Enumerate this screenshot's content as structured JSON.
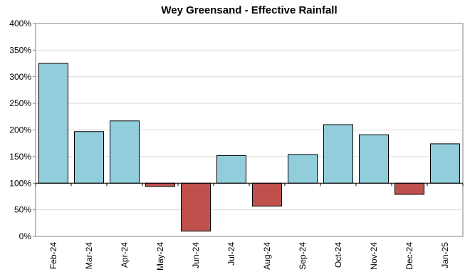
{
  "chart_data": {
    "type": "bar",
    "title": "Wey Greensand - Effective Rainfall",
    "xlabel": "",
    "ylabel": "",
    "categories": [
      "Feb-24",
      "Mar-24",
      "Apr-24",
      "May-24",
      "Jun-24",
      "Jul-24",
      "Aug-24",
      "Sep-24",
      "Oct-24",
      "Nov-24",
      "Dec-24",
      "Jan-25"
    ],
    "values": [
      325,
      197,
      217,
      94,
      10,
      152,
      57,
      154,
      210,
      191,
      79,
      174
    ],
    "baseline": 100,
    "ylim": [
      0,
      400
    ],
    "yticks": [
      "0%",
      "50%",
      "100%",
      "150%",
      "200%",
      "250%",
      "300%",
      "350%",
      "400%"
    ],
    "ytick_values": [
      0,
      50,
      100,
      150,
      200,
      250,
      300,
      350,
      400
    ],
    "grid": true,
    "legend": "none",
    "colors": {
      "above": "#92CDDC",
      "below": "#C0504D",
      "bar_edge": "#000000",
      "grid": "#D9D9D9",
      "axis": "#808080"
    }
  }
}
